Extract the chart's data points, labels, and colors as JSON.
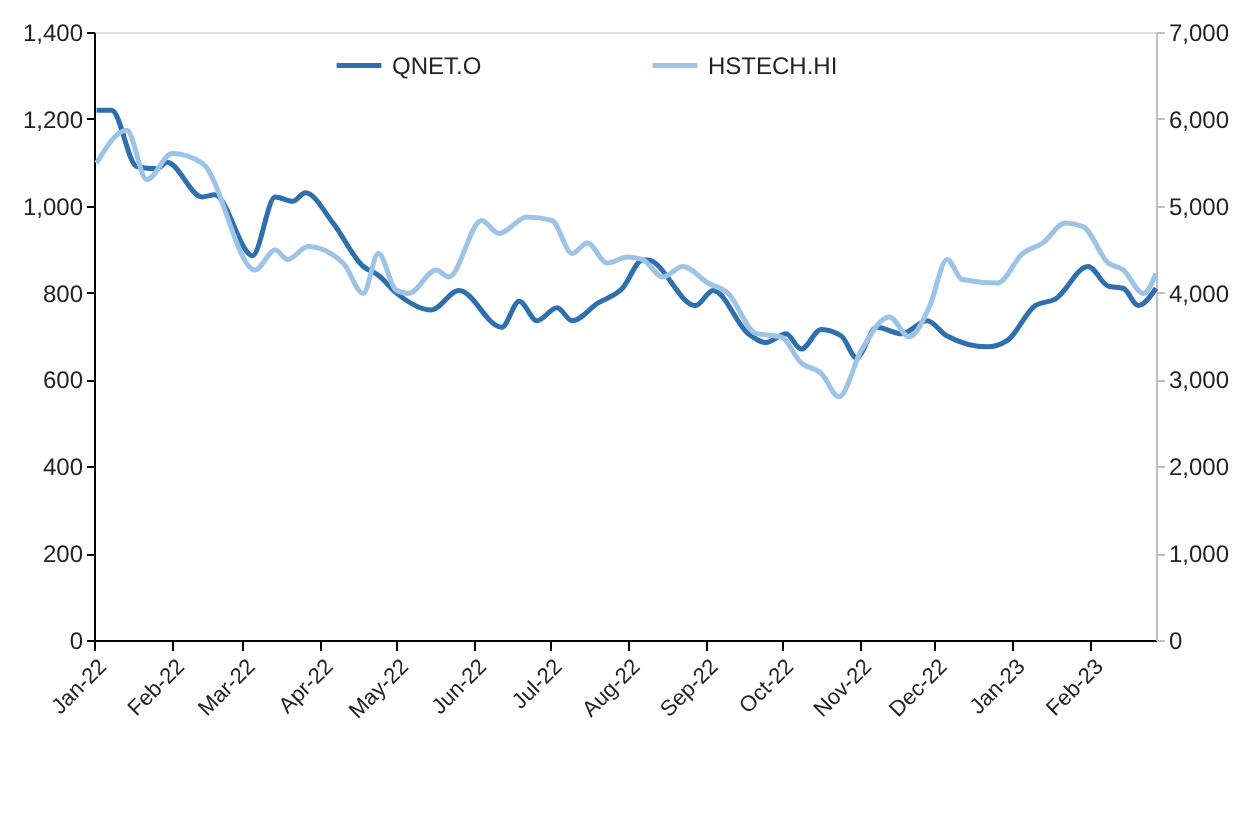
{
  "chart_data": {
    "type": "line",
    "xlim": [
      "2022-01-01",
      "2023-02-27"
    ],
    "xticks": [
      {
        "value": "2022-01-01",
        "label": "Jan-22"
      },
      {
        "value": "2022-02-01",
        "label": "Feb-22"
      },
      {
        "value": "2022-03-01",
        "label": "Mar-22"
      },
      {
        "value": "2022-04-01",
        "label": "Apr-22"
      },
      {
        "value": "2022-05-01",
        "label": "May-22"
      },
      {
        "value": "2022-06-01",
        "label": "Jun-22"
      },
      {
        "value": "2022-07-01",
        "label": "Jul-22"
      },
      {
        "value": "2022-08-01",
        "label": "Aug-22"
      },
      {
        "value": "2022-09-01",
        "label": "Sep-22"
      },
      {
        "value": "2022-10-01",
        "label": "Oct-22"
      },
      {
        "value": "2022-11-01",
        "label": "Nov-22"
      },
      {
        "value": "2022-12-01",
        "label": "Dec-22"
      },
      {
        "value": "2023-01-01",
        "label": "Jan-23"
      },
      {
        "value": "2023-02-01",
        "label": "Feb-23"
      }
    ],
    "ylim": [
      0,
      1400
    ],
    "yticks": [
      {
        "value": 0,
        "label": "0"
      },
      {
        "value": 200,
        "label": "200"
      },
      {
        "value": 400,
        "label": "400"
      },
      {
        "value": 600,
        "label": "600"
      },
      {
        "value": 800,
        "label": "800"
      },
      {
        "value": 1000,
        "label": "1,000"
      },
      {
        "value": 1200,
        "label": "1,200"
      },
      {
        "value": 1400,
        "label": "1,400"
      }
    ],
    "y2lim": [
      0,
      7000
    ],
    "y2ticks": [
      {
        "value": 0,
        "label": "0"
      },
      {
        "value": 1000,
        "label": "1,000"
      },
      {
        "value": 2000,
        "label": "2,000"
      },
      {
        "value": 3000,
        "label": "3,000"
      },
      {
        "value": 4000,
        "label": "4,000"
      },
      {
        "value": 5000,
        "label": "5,000"
      },
      {
        "value": 6000,
        "label": "6,000"
      },
      {
        "value": 7000,
        "label": "7,000"
      }
    ],
    "grid": false,
    "legend": "top",
    "marker": "none",
    "line_style": "solid",
    "series": [
      {
        "name": "QNET.O",
        "color": "#2e6fad",
        "x": [
          "2022-01-02",
          "2022-01-08",
          "2022-01-18",
          "2022-01-26",
          "2022-01-30",
          "2022-02-13",
          "2022-02-18",
          "2022-03-05",
          "2022-03-14",
          "2022-03-21",
          "2022-03-26",
          "2022-04-06",
          "2022-04-18",
          "2022-04-24",
          "2022-05-01",
          "2022-05-15",
          "2022-05-26",
          "2022-06-12",
          "2022-06-19",
          "2022-06-26",
          "2022-07-04",
          "2022-07-10",
          "2022-07-20",
          "2022-07-30",
          "2022-08-07",
          "2022-08-09",
          "2022-08-28",
          "2022-09-04",
          "2022-09-18",
          "2022-09-25",
          "2022-10-03",
          "2022-10-09",
          "2022-10-17",
          "2022-10-25",
          "2022-10-31",
          "2022-11-08",
          "2022-11-18",
          "2022-11-28",
          "2022-12-06",
          "2022-12-22",
          "2022-12-30",
          "2023-01-10",
          "2023-01-18",
          "2023-01-31",
          "2023-02-08",
          "2023-02-14",
          "2023-02-20",
          "2023-02-27"
        ],
        "values": [
          1220,
          1220,
          1090,
          1085,
          1100,
          1020,
          1025,
          885,
          1020,
          1010,
          1030,
          960,
          860,
          840,
          800,
          760,
          805,
          720,
          780,
          735,
          765,
          735,
          775,
          810,
          875,
          875,
          770,
          805,
          705,
          685,
          705,
          670,
          715,
          700,
          650,
          720,
          705,
          735,
          700,
          675,
          690,
          770,
          785,
          860,
          815,
          810,
          770,
          810
        ]
      },
      {
        "name": "HSTECH.HI",
        "color": "#9dc3e6",
        "axis": "y2",
        "x": [
          "2022-01-02",
          "2022-01-14",
          "2022-01-22",
          "2022-02-01",
          "2022-02-13",
          "2022-03-06",
          "2022-03-14",
          "2022-03-19",
          "2022-03-27",
          "2022-04-10",
          "2022-04-18",
          "2022-04-24",
          "2022-05-01",
          "2022-05-06",
          "2022-05-17",
          "2022-05-22",
          "2022-06-04",
          "2022-06-11",
          "2022-06-22",
          "2022-07-02",
          "2022-07-10",
          "2022-07-16",
          "2022-07-24",
          "2022-08-01",
          "2022-08-07",
          "2022-08-15",
          "2022-08-23",
          "2022-09-02",
          "2022-09-10",
          "2022-09-21",
          "2022-10-01",
          "2022-10-09",
          "2022-10-17",
          "2022-10-24",
          "2022-11-02",
          "2022-11-13",
          "2022-11-21",
          "2022-11-29",
          "2022-12-06",
          "2022-12-12",
          "2022-12-26",
          "2023-01-05",
          "2023-01-13",
          "2023-01-22",
          "2023-01-29",
          "2023-02-08",
          "2023-02-14",
          "2023-02-22",
          "2023-02-27"
        ],
        "values": [
          5490,
          5870,
          5300,
          5600,
          5490,
          4260,
          4490,
          4380,
          4530,
          4340,
          3990,
          4450,
          4030,
          3990,
          4260,
          4180,
          4830,
          4680,
          4870,
          4830,
          4450,
          4570,
          4340,
          4410,
          4380,
          4180,
          4300,
          4110,
          3990,
          3530,
          3490,
          3190,
          3070,
          2800,
          3340,
          3720,
          3490,
          3840,
          4380,
          4150,
          4110,
          4450,
          4570,
          4800,
          4760,
          4340,
          4260,
          3990,
          4220
        ]
      }
    ]
  }
}
